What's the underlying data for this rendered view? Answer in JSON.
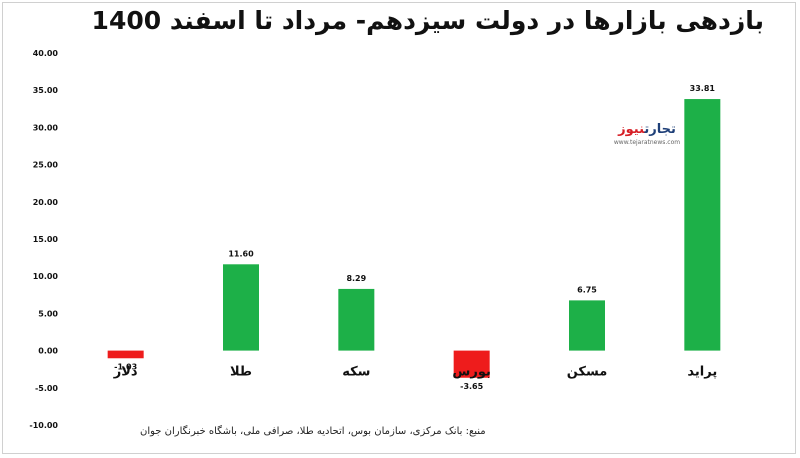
{
  "chart_data": {
    "type": "bar",
    "title": "بازدهی بازارها در دولت سیزدهم- مرداد تا اسفند 1400",
    "categories": [
      "دلار",
      "طلا",
      "سکه",
      "بورس",
      "مسکن",
      "پراید"
    ],
    "values": [
      -1.03,
      11.6,
      8.29,
      -3.65,
      6.75,
      33.81
    ],
    "value_labels": [
      "-1.03",
      "11.60",
      "8.29",
      "-3.65",
      "6.75",
      "33.81"
    ],
    "ylim": [
      -10,
      40
    ],
    "yticks": [
      "-10.00",
      "-5.00",
      "0.00",
      "5.00",
      "10.00",
      "15.00",
      "20.00",
      "25.00",
      "30.00",
      "35.00",
      "40.00"
    ],
    "grid": false,
    "colors": {
      "positive": "#1db048",
      "negative": "#ee1c1c"
    }
  },
  "logo": {
    "name_part1": "تجارت",
    "name_part2": "نیوز",
    "url": "www.tejaratnews.com"
  },
  "source": "منبع: بانک مرکزی، سازمان بوس، اتحادیه طلا، صرافی ملی، باشگاه خبرنگاران جوان"
}
